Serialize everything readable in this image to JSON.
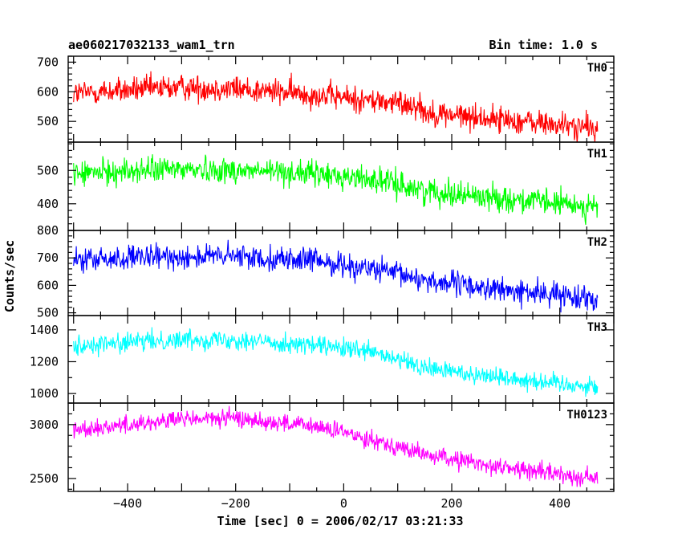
{
  "figure": {
    "title": "ae060217032133_wam1_trn",
    "bin_time": "Bin time: 1.0 s",
    "ylabel": "Counts/sec",
    "xlabel": "Time [sec] 0 = 2006/02/17 03:21:33"
  },
  "chart_data": {
    "type": "line",
    "title": "ae060217032133_wam1_trn",
    "xlabel": "Time [sec] 0 = 2006/02/17 03:21:33",
    "ylabel": "Counts/sec",
    "xlim": [
      -510,
      500
    ],
    "xticks": [
      -400,
      -200,
      0,
      200,
      400
    ],
    "xtick_labels": [
      "−400",
      "−200",
      "0",
      "200",
      "400"
    ],
    "x_range": [
      -500,
      470
    ],
    "bin_time": 1.0,
    "grid": false,
    "panels": [
      {
        "name": "TH0",
        "color": "#ff0000",
        "ylim": [
          430,
          720
        ],
        "yticks": [
          500,
          600,
          700
        ],
        "ytick_labels": [
          "500",
          "600",
          "700"
        ],
        "trend": [
          [
            -500,
            595
          ],
          [
            -300,
            615
          ],
          [
            -200,
            610
          ],
          [
            -50,
            590
          ],
          [
            50,
            570
          ],
          [
            140,
            555
          ],
          [
            150,
            530
          ],
          [
            300,
            505
          ],
          [
            470,
            475
          ]
        ],
        "noise": 40
      },
      {
        "name": "TH1",
        "color": "#00ff00",
        "ylim": [
          320,
          585
        ],
        "yticks": [
          400,
          500
        ],
        "ytick_labels": [
          "400",
          "500"
        ],
        "trend": [
          [
            -500,
            490
          ],
          [
            -300,
            505
          ],
          [
            -100,
            495
          ],
          [
            50,
            475
          ],
          [
            150,
            440
          ],
          [
            300,
            415
          ],
          [
            470,
            390
          ]
        ],
        "noise": 35
      },
      {
        "name": "TH2",
        "color": "#0000ff",
        "ylim": [
          490,
          800
        ],
        "yticks": [
          500,
          600,
          700,
          800
        ],
        "ytick_labels": [
          "500",
          "600",
          "700",
          "800"
        ],
        "trend": [
          [
            -500,
            690
          ],
          [
            -300,
            705
          ],
          [
            -200,
            705
          ],
          [
            -50,
            690
          ],
          [
            50,
            660
          ],
          [
            150,
            620
          ],
          [
            300,
            580
          ],
          [
            470,
            555
          ]
        ],
        "noise": 40
      },
      {
        "name": "TH3",
        "color": "#00ffff",
        "ylim": [
          940,
          1490
        ],
        "yticks": [
          1000,
          1200,
          1400
        ],
        "ytick_labels": [
          "1000",
          "1200",
          "1400"
        ],
        "trend": [
          [
            -500,
            1300
          ],
          [
            -300,
            1340
          ],
          [
            -200,
            1340
          ],
          [
            -50,
            1300
          ],
          [
            50,
            1260
          ],
          [
            150,
            1160
          ],
          [
            300,
            1100
          ],
          [
            470,
            1040
          ]
        ],
        "noise": 55
      },
      {
        "name": "TH0123",
        "color": "#ff00ff",
        "ylim": [
          2380,
          3200
        ],
        "yticks": [
          2500,
          3000
        ],
        "ytick_labels": [
          "2500",
          "3000"
        ],
        "trend": [
          [
            -500,
            2950
          ],
          [
            -300,
            3050
          ],
          [
            -200,
            3060
          ],
          [
            -50,
            2980
          ],
          [
            50,
            2870
          ],
          [
            150,
            2720
          ],
          [
            300,
            2600
          ],
          [
            470,
            2500
          ]
        ],
        "noise": 75
      }
    ]
  }
}
